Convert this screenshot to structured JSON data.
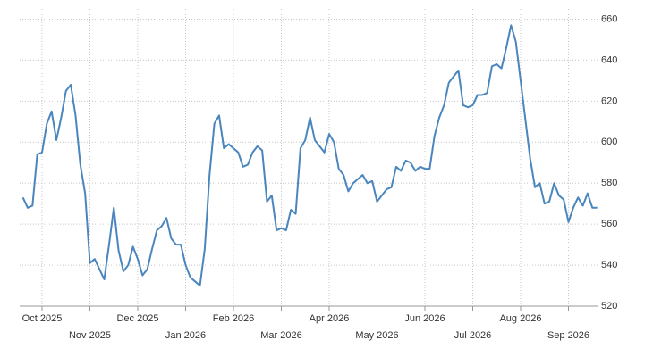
{
  "chart_data": {
    "type": "line",
    "categories": [
      null,
      null,
      null,
      null,
      "Oct 2025",
      null,
      null,
      null,
      null,
      null,
      null,
      null,
      null,
      null,
      "Nov 2025",
      null,
      null,
      null,
      null,
      null,
      null,
      null,
      null,
      null,
      "Dec 2025",
      null,
      null,
      null,
      null,
      null,
      null,
      null,
      null,
      null,
      "Jan 2026",
      null,
      null,
      null,
      null,
      null,
      null,
      null,
      null,
      null,
      "Feb 2026",
      null,
      null,
      null,
      null,
      null,
      null,
      null,
      null,
      null,
      "Mar 2026",
      null,
      null,
      null,
      null,
      null,
      null,
      null,
      null,
      null,
      "Apr 2026",
      null,
      null,
      null,
      null,
      null,
      null,
      null,
      null,
      null,
      "May 2026",
      null,
      null,
      null,
      null,
      null,
      null,
      null,
      null,
      null,
      "Jun 2026",
      null,
      null,
      null,
      null,
      null,
      null,
      null,
      null,
      null,
      "Jul 2026",
      null,
      null,
      null,
      null,
      null,
      null,
      null,
      null,
      null,
      "Aug 2026",
      null,
      null,
      null,
      null,
      null,
      null,
      null,
      null,
      null,
      "Sep 2026",
      null,
      null,
      null,
      null,
      null,
      null
    ],
    "values": [
      573,
      568,
      569,
      594,
      595,
      609,
      615,
      601,
      612,
      625,
      628,
      613,
      589,
      575,
      541,
      543,
      538,
      533,
      550,
      568,
      547,
      537,
      540,
      549,
      543,
      535,
      538,
      548,
      557,
      559,
      563,
      553,
      550,
      550,
      540,
      534,
      532,
      530,
      548,
      584,
      609,
      613,
      597,
      599,
      597,
      595,
      588,
      589,
      595,
      598,
      596,
      571,
      574,
      557,
      558,
      557,
      567,
      565,
      597,
      601,
      612,
      601,
      598,
      595,
      604,
      600,
      587,
      584,
      576,
      580,
      582,
      584,
      580,
      581,
      571,
      574,
      577,
      578,
      588,
      586,
      591,
      590,
      586,
      588,
      587,
      587,
      603,
      612,
      618,
      629,
      632,
      635,
      618,
      617,
      618,
      623,
      623,
      624,
      637,
      638,
      636,
      646,
      657,
      649,
      630,
      611,
      592,
      578,
      580,
      570,
      571,
      580,
      574,
      572,
      561,
      568,
      573,
      569,
      575,
      568,
      568
    ],
    "color": "#4a86bd",
    "ylim": [
      520,
      665
    ],
    "yticks": [
      520,
      540,
      560,
      580,
      600,
      620,
      640,
      660
    ],
    "grid": true
  }
}
